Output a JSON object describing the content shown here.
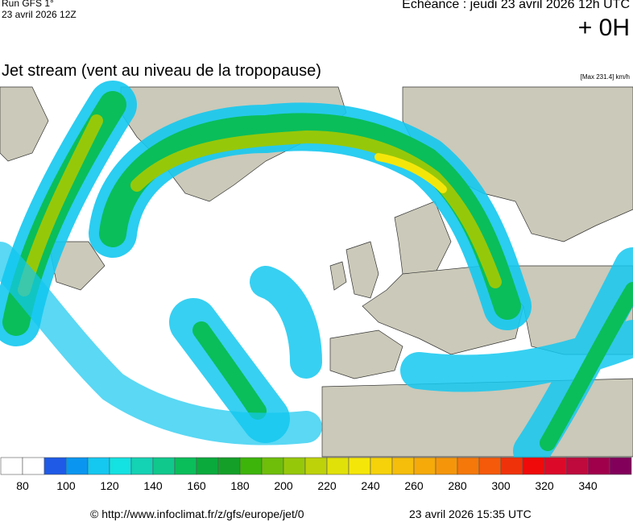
{
  "header": {
    "run": "Run GFS 1°",
    "run_date": "23 avril 2026 12Z",
    "forecast": "Echéance : jeudi 23 avril 2026 12h UTC",
    "lead": "+ 0H",
    "title": "Jet stream (vent au niveau de la tropopause)",
    "max": "[Max 231.4] km/h"
  },
  "colorbar": {
    "labels": [
      80,
      100,
      120,
      140,
      160,
      180,
      200,
      220,
      240,
      260,
      280,
      300,
      320,
      340
    ],
    "colors": [
      "#ffffff",
      "#ffffff",
      "#1e5ae6",
      "#0a96f0",
      "#14c8f0",
      "#14e1e1",
      "#14d2b4",
      "#10c88c",
      "#0abe5a",
      "#0aaa3c",
      "#14a028",
      "#3cb40a",
      "#6ebe0a",
      "#96c80a",
      "#bed20a",
      "#e1e10a",
      "#f5e60a",
      "#f5d20a",
      "#f5be0a",
      "#f5aa0a",
      "#f5960a",
      "#f5780a",
      "#f55a0a",
      "#f0320a",
      "#f00a0a",
      "#dc0a28",
      "#be0a3c",
      "#a0004b",
      "#82005a"
    ]
  },
  "footer": {
    "url": "© http://www.infoclimat.fr/z/gfs/europe/jet/0",
    "generated": "23 avril 2026 15:35 UTC"
  }
}
